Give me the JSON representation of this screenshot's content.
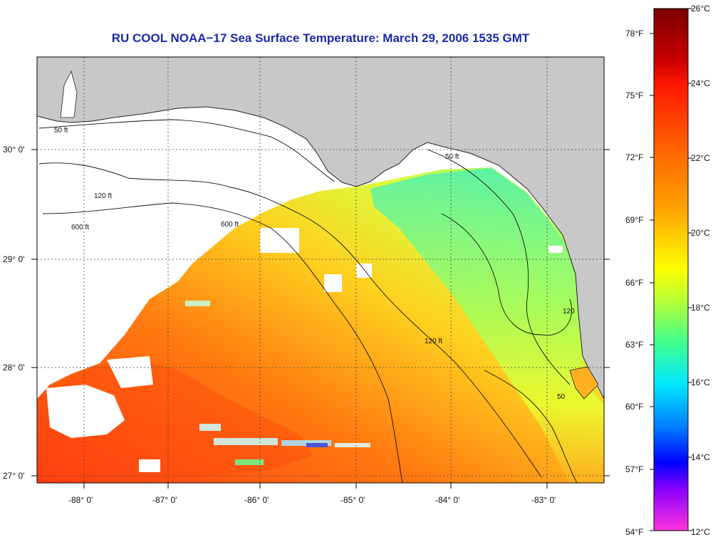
{
  "map": {
    "title": "RU COOL  NOAA−17  Sea Surface Temperature:  March 29, 2006 1535 GMT",
    "lon_ticks": [
      "-88° 0'",
      "-87° 0'",
      "-86° 0'",
      "-85° 0'",
      "-84° 0'",
      "-83° 0'"
    ],
    "lat_ticks": [
      "30° 0'",
      "29° 0'",
      "28° 0'",
      "27° 0'"
    ],
    "contour_labels": [
      "50 ft",
      "120 ft",
      "600 ft",
      "50",
      "120"
    ],
    "colors": {
      "land": "#c8c8c8",
      "no_data": "#ffffff",
      "title": "#1a2aa6"
    }
  },
  "colorbar": {
    "celsius_labels": [
      "26°C",
      "24°C",
      "22°C",
      "20°C",
      "18°C",
      "16°C",
      "14°C",
      "12°C"
    ],
    "fahrenheit_labels": [
      "78°F",
      "75°F",
      "72°F",
      "69°F",
      "66°F",
      "63°F",
      "60°F",
      "57°F",
      "54°F"
    ],
    "range_c": [
      12,
      26
    ]
  }
}
